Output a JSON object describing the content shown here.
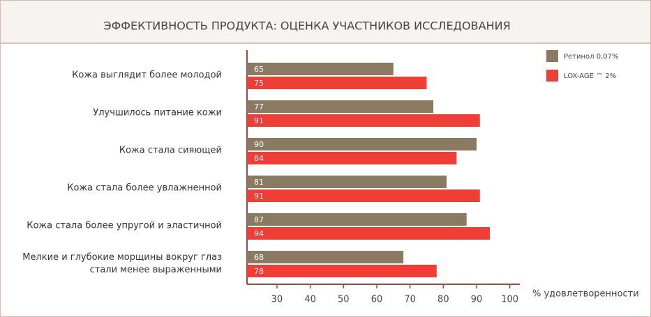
{
  "chart_data": {
    "type": "bar",
    "orientation": "horizontal",
    "title": "ЭФФЕКТИВНОСТЬ ПРОДУКТА: ОЦЕНКА УЧАСТНИКОВ ИССЛЕДОВАНИЯ",
    "x_label": "% удовлетворенности",
    "categories": [
      "Кожа выглядит более молодой",
      "Улучшилось питание кожи",
      "Кожа стала сияющей",
      "Кожа стала более увлажненной",
      "Кожа стала более упругой и эластичной",
      "Мелкие и глубокие морщины вокруг глаз\nстали менее выраженными"
    ],
    "series": [
      {
        "name": "Ретинол 0,07%",
        "color": "#8b7a62",
        "values": [
          65,
          77,
          90,
          81,
          87,
          68
        ]
      },
      {
        "name": "LOX-AGE ™ 2%",
        "color": "#ef3e36",
        "values": [
          75,
          91,
          84,
          91,
          94,
          78
        ]
      }
    ],
    "xlim": [
      21,
      103
    ],
    "xticks": [
      30,
      40,
      50,
      60,
      70,
      80,
      90,
      100
    ],
    "legend": "top-right",
    "grid": false
  }
}
